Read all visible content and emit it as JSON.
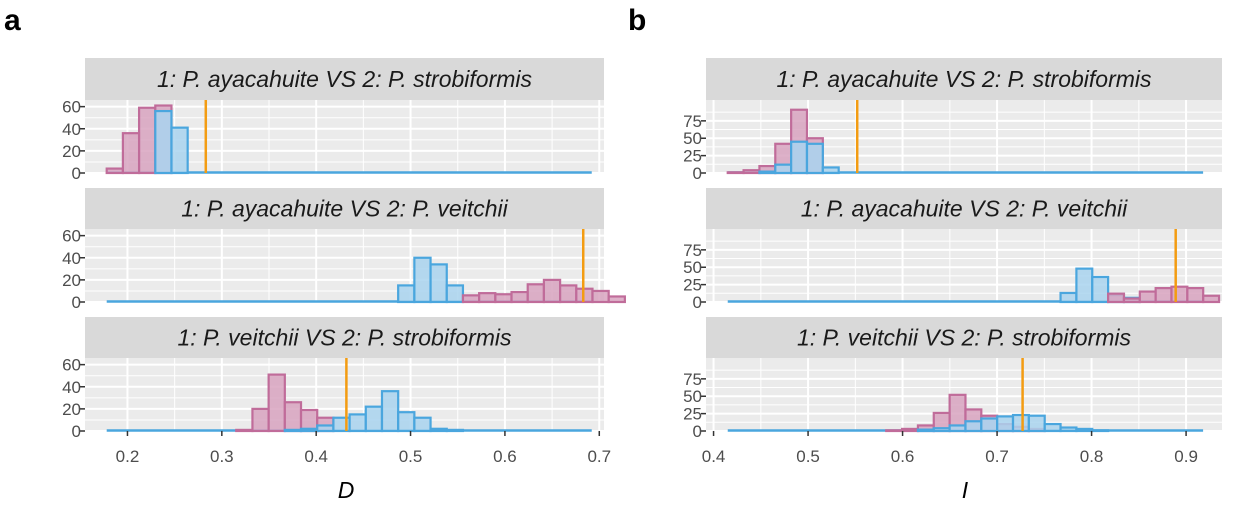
{
  "figure": {
    "panel_letters": [
      "a",
      "b"
    ]
  },
  "colors": {
    "strip_bg": "#d9d9d9",
    "panel_bg": "#ebebeb",
    "grid": "#ffffff",
    "pink_fill": "#d8a3bf",
    "pink_stroke": "#c06c9a",
    "blue_fill": "#a9d4ee",
    "blue_stroke": "#4aa6de",
    "observed_line": "#f39c12",
    "tick_text": "#4d4d4d"
  },
  "chart_data": [
    {
      "type": "histogram",
      "panel": "a",
      "xlabel": "D",
      "xlim": [
        0.155,
        0.705
      ],
      "xticks": [
        0.2,
        0.3,
        0.4,
        0.5,
        0.6,
        0.7
      ],
      "xtick_labels": [
        "0.2",
        "0.3",
        "0.4",
        "0.5",
        "0.6",
        "0.7"
      ],
      "bins": {
        "start": 0.178,
        "end": 0.692,
        "width": 0.01716
      },
      "facets": [
        {
          "title": "1: P. ayacahuite VS 2: P. strobiformis",
          "ylim": [
            0,
            66
          ],
          "yticks": [
            0,
            20,
            40,
            60
          ],
          "ytick_labels": [
            "0",
            "20",
            "40",
            "60"
          ],
          "series": [
            {
              "name": "identity",
              "color": "pink",
              "values": [
                4,
                36,
                59,
                61
              ]
            },
            {
              "name": "background",
              "color": "blue",
              "values": [
                0,
                0,
                0,
                56,
                41
              ]
            }
          ],
          "observed": 0.283
        },
        {
          "title": "1: P. ayacahuite VS 2: P. veitchii",
          "ylim": [
            0,
            66
          ],
          "yticks": [
            0,
            20,
            40,
            60
          ],
          "ytick_labels": [
            "0",
            "20",
            "40",
            "60"
          ],
          "series": [
            {
              "name": "background",
              "color": "blue",
              "values": [
                0,
                0,
                0,
                0,
                0,
                0,
                0,
                0,
                0,
                0,
                0,
                0,
                0,
                0,
                0,
                0,
                0,
                0,
                15,
                40,
                34,
                15
              ]
            },
            {
              "name": "identity",
              "color": "pink",
              "values": [
                0,
                0,
                0,
                0,
                0,
                0,
                0,
                0,
                0,
                0,
                0,
                0,
                0,
                0,
                0,
                0,
                0,
                0,
                0,
                0,
                0,
                0,
                6,
                8,
                7,
                9,
                16,
                20,
                15,
                12,
                10,
                5
              ]
            }
          ],
          "observed": 0.683
        },
        {
          "title": "1: P. veitchii VS 2: P. strobiformis",
          "ylim": [
            0,
            66
          ],
          "yticks": [
            0,
            20,
            40,
            60
          ],
          "ytick_labels": [
            "0",
            "20",
            "40",
            "60"
          ],
          "series": [
            {
              "name": "identity",
              "color": "pink",
              "values": [
                0,
                0,
                0,
                0,
                0,
                0,
                0,
                0,
                1,
                20,
                51,
                26,
                19,
                12
              ]
            },
            {
              "name": "background",
              "color": "blue",
              "values": [
                0,
                0,
                0,
                0,
                0,
                0,
                0,
                0,
                0,
                0,
                0,
                1,
                2,
                5,
                12,
                15,
                22,
                36,
                17,
                12,
                2,
                1
              ]
            }
          ],
          "observed": 0.432
        }
      ]
    },
    {
      "type": "histogram",
      "panel": "b",
      "xlabel": "I",
      "xlim": [
        0.392,
        0.938
      ],
      "xticks": [
        0.4,
        0.5,
        0.6,
        0.7,
        0.8,
        0.9
      ],
      "xtick_labels": [
        "0.4",
        "0.5",
        "0.6",
        "0.7",
        "0.8",
        "0.9"
      ],
      "bins": {
        "start": 0.415,
        "end": 0.918,
        "width": 0.01677
      },
      "facets": [
        {
          "title": "1: P. ayacahuite VS 2: P. strobiformis",
          "ylim": [
            0,
            105
          ],
          "yticks": [
            0,
            25,
            50,
            75
          ],
          "ytick_labels": [
            "0",
            "25",
            "50",
            "75"
          ],
          "series": [
            {
              "name": "identity",
              "color": "pink",
              "values": [
                1,
                4,
                10,
                42,
                91,
                50
              ]
            },
            {
              "name": "background",
              "color": "blue",
              "values": [
                0,
                0,
                2,
                12,
                45,
                42,
                8
              ]
            }
          ],
          "observed": 0.552
        },
        {
          "title": "1: P. ayacahuite VS 2: P. veitchii",
          "ylim": [
            0,
            105
          ],
          "yticks": [
            0,
            25,
            50,
            75
          ],
          "ytick_labels": [
            "0",
            "25",
            "50",
            "75"
          ],
          "series": [
            {
              "name": "background",
              "color": "blue",
              "values": [
                0,
                0,
                0,
                0,
                0,
                0,
                0,
                0,
                0,
                0,
                0,
                0,
                0,
                0,
                0,
                0,
                0,
                0,
                0,
                0,
                0,
                13,
                48,
                36,
                10,
                6
              ]
            },
            {
              "name": "identity",
              "color": "pink",
              "values": [
                0,
                0,
                0,
                0,
                0,
                0,
                0,
                0,
                0,
                0,
                0,
                0,
                0,
                0,
                0,
                0,
                0,
                0,
                0,
                0,
                0,
                0,
                0,
                0,
                12,
                5,
                15,
                20,
                22,
                20,
                9
              ]
            }
          ],
          "observed": 0.889
        },
        {
          "title": "1: P. veitchii VS 2: P. strobiformis",
          "ylim": [
            0,
            105
          ],
          "yticks": [
            0,
            25,
            50,
            75
          ],
          "ytick_labels": [
            "0",
            "25",
            "50",
            "75"
          ],
          "series": [
            {
              "name": "identity",
              "color": "pink",
              "values": [
                0,
                0,
                0,
                0,
                0,
                0,
                0,
                0,
                0,
                0,
                1,
                3,
                8,
                26,
                52,
                31,
                22,
                10,
                6,
                3
              ]
            },
            {
              "name": "background",
              "color": "blue",
              "values": [
                0,
                0,
                0,
                0,
                0,
                0,
                0,
                0,
                0,
                0,
                0,
                0,
                2,
                4,
                8,
                14,
                18,
                21,
                23,
                22,
                10,
                5,
                3,
                1
              ]
            }
          ],
          "observed": 0.727
        }
      ]
    }
  ]
}
